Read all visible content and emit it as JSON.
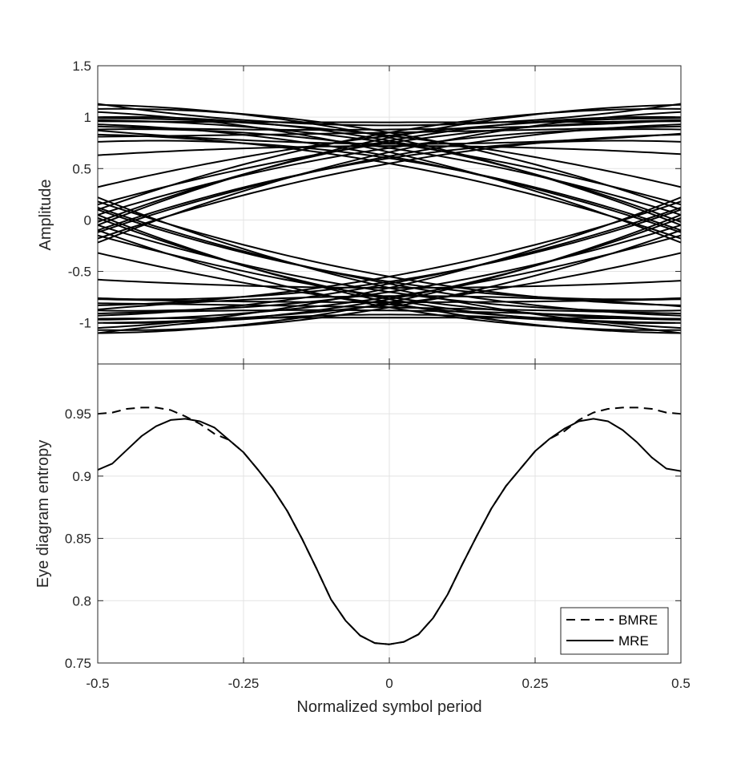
{
  "chart_data": [
    {
      "type": "line",
      "name": "eye-diagram",
      "ylabel": "Amplitude",
      "xlim": [
        -0.5,
        0.5
      ],
      "ylim": [
        -1.4,
        1.5
      ],
      "yticks": [
        -1,
        -0.5,
        0,
        0.5,
        1,
        1.5
      ],
      "yticklabels": [
        "-1",
        "-0.5",
        "0",
        "0.5",
        "1",
        "1.5"
      ],
      "grid": true,
      "line_color": "#000000",
      "traces": [
        {
          "y_left": 0.93,
          "y_right": -0.12,
          "y_center": 0.62
        },
        {
          "y_left": 1.12,
          "y_right": -0.05,
          "y_center": 0.8
        },
        {
          "y_left": 0.88,
          "y_right": 0.05,
          "y_center": 0.7
        },
        {
          "y_left": 1.05,
          "y_right": -0.22,
          "y_center": 0.66
        },
        {
          "y_left": 0.97,
          "y_right": 0.15,
          "y_center": 0.75
        },
        {
          "y_left": 0.83,
          "y_right": -0.18,
          "y_center": 0.55
        },
        {
          "y_left": 0.99,
          "y_right": 0.32,
          "y_center": 0.82
        },
        {
          "y_left": 1.0,
          "y_right": -0.02,
          "y_center": 0.77
        },
        {
          "y_left": 1.08,
          "y_right": 0.1,
          "y_center": 0.85
        },
        {
          "y_left": 0.76,
          "y_right": -0.1,
          "y_center": 0.6
        },
        {
          "y_left": -0.12,
          "y_right": 0.93,
          "y_center": 0.62
        },
        {
          "y_left": -0.05,
          "y_right": 1.12,
          "y_center": 0.8
        },
        {
          "y_left": 0.05,
          "y_right": 0.88,
          "y_center": 0.7
        },
        {
          "y_left": -0.22,
          "y_right": 1.05,
          "y_center": 0.66
        },
        {
          "y_left": 0.15,
          "y_right": 0.97,
          "y_center": 0.75
        },
        {
          "y_left": -0.18,
          "y_right": 0.83,
          "y_center": 0.55
        },
        {
          "y_left": 0.32,
          "y_right": 0.99,
          "y_center": 0.82
        },
        {
          "y_left": -0.02,
          "y_right": 1.0,
          "y_center": 0.77
        },
        {
          "y_left": 0.1,
          "y_right": 1.08,
          "y_center": 0.85
        },
        {
          "y_left": -0.1,
          "y_right": 0.76,
          "y_center": 0.6
        },
        {
          "y_left": -0.93,
          "y_right": 0.12,
          "y_center": -0.62
        },
        {
          "y_left": -1.1,
          "y_right": 0.05,
          "y_center": -0.8
        },
        {
          "y_left": -0.88,
          "y_right": -0.05,
          "y_center": -0.7
        },
        {
          "y_left": -1.05,
          "y_right": 0.22,
          "y_center": -0.66
        },
        {
          "y_left": -0.97,
          "y_right": -0.15,
          "y_center": -0.75
        },
        {
          "y_left": -0.83,
          "y_right": 0.18,
          "y_center": -0.55
        },
        {
          "y_left": -1.0,
          "y_right": -0.32,
          "y_center": -0.82
        },
        {
          "y_left": -1.0,
          "y_right": 0.02,
          "y_center": -0.77
        },
        {
          "y_left": -1.07,
          "y_right": -0.1,
          "y_center": -0.85
        },
        {
          "y_left": -0.76,
          "y_right": 0.1,
          "y_center": -0.6
        },
        {
          "y_left": 0.12,
          "y_right": -0.93,
          "y_center": -0.62
        },
        {
          "y_left": 0.05,
          "y_right": -1.1,
          "y_center": -0.8
        },
        {
          "y_left": -0.05,
          "y_right": -0.88,
          "y_center": -0.7
        },
        {
          "y_left": 0.22,
          "y_right": -1.05,
          "y_center": -0.66
        },
        {
          "y_left": -0.15,
          "y_right": -0.97,
          "y_center": -0.75
        },
        {
          "y_left": 0.18,
          "y_right": -0.83,
          "y_center": -0.55
        },
        {
          "y_left": -0.32,
          "y_right": -1.0,
          "y_center": -0.82
        },
        {
          "y_left": 0.02,
          "y_right": -1.0,
          "y_center": -0.77
        },
        {
          "y_left": -0.1,
          "y_right": -1.07,
          "y_center": -0.85
        },
        {
          "y_left": 0.1,
          "y_right": -0.76,
          "y_center": -0.6
        },
        {
          "y_left": 0.87,
          "y_right": 0.84,
          "y_center": 0.74
        },
        {
          "y_left": 0.81,
          "y_right": 0.91,
          "y_center": 0.85
        },
        {
          "y_left": 0.63,
          "y_right": 0.64,
          "y_center": 0.72
        },
        {
          "y_left": 0.91,
          "y_right": 0.97,
          "y_center": 0.88
        },
        {
          "y_left": 1.13,
          "y_right": 1.13,
          "y_center": 0.92
        },
        {
          "y_left": 0.96,
          "y_right": 0.96,
          "y_center": 0.95
        },
        {
          "y_left": -0.87,
          "y_right": -0.84,
          "y_center": -0.74
        },
        {
          "y_left": -0.81,
          "y_right": -0.91,
          "y_center": -0.85
        },
        {
          "y_left": -0.58,
          "y_right": -0.59,
          "y_center": -0.66
        },
        {
          "y_left": -0.91,
          "y_right": -0.97,
          "y_center": -0.88
        },
        {
          "y_left": -1.1,
          "y_right": -1.1,
          "y_center": -0.92
        },
        {
          "y_left": -0.96,
          "y_right": -0.96,
          "y_center": -0.95
        },
        {
          "y_left": -0.77,
          "y_right": -0.77,
          "y_center": -0.8
        }
      ]
    },
    {
      "type": "line",
      "name": "eye-entropy",
      "xlabel": "Normalized symbol period",
      "ylabel": "Eye diagram entropy",
      "xlim": [
        -0.5,
        0.5
      ],
      "ylim": [
        0.75,
        0.99
      ],
      "xticks": [
        -0.5,
        -0.25,
        0,
        0.25,
        0.5
      ],
      "xticklabels": [
        "-0.5",
        "-0.25",
        "0",
        "0.25",
        "0.5"
      ],
      "yticks": [
        0.75,
        0.8,
        0.85,
        0.9,
        0.95
      ],
      "yticklabels": [
        "0.75",
        "0.8",
        "0.85",
        "0.9",
        "0.95"
      ],
      "grid": true,
      "legend": {
        "location": "bottom-right"
      },
      "series": [
        {
          "name": "BMRE",
          "style": "dashed",
          "color": "#000000",
          "x": [
            -0.5,
            -0.475,
            -0.45,
            -0.425,
            -0.4,
            -0.375,
            -0.35,
            -0.325,
            -0.3,
            -0.275,
            -0.25,
            -0.225,
            -0.2,
            -0.175,
            -0.15,
            -0.125,
            -0.1,
            -0.075,
            -0.05,
            -0.025,
            0,
            0.025,
            0.05,
            0.075,
            0.1,
            0.125,
            0.15,
            0.175,
            0.2,
            0.225,
            0.25,
            0.275,
            0.3,
            0.325,
            0.35,
            0.375,
            0.4,
            0.425,
            0.45,
            0.475,
            0.5
          ],
          "y": [
            0.95,
            0.951,
            0.954,
            0.955,
            0.955,
            0.953,
            0.948,
            0.942,
            0.934,
            0.929,
            0.919,
            0.905,
            0.89,
            0.872,
            0.85,
            0.826,
            0.801,
            0.784,
            0.772,
            0.766,
            0.765,
            0.767,
            0.773,
            0.786,
            0.805,
            0.829,
            0.852,
            0.874,
            0.892,
            0.906,
            0.92,
            0.93,
            0.936,
            0.945,
            0.951,
            0.954,
            0.955,
            0.955,
            0.954,
            0.951,
            0.95
          ]
        },
        {
          "name": "MRE",
          "style": "solid",
          "color": "#000000",
          "x": [
            -0.5,
            -0.475,
            -0.45,
            -0.425,
            -0.4,
            -0.375,
            -0.35,
            -0.325,
            -0.3,
            -0.275,
            -0.25,
            -0.225,
            -0.2,
            -0.175,
            -0.15,
            -0.125,
            -0.1,
            -0.075,
            -0.05,
            -0.025,
            0,
            0.025,
            0.05,
            0.075,
            0.1,
            0.125,
            0.15,
            0.175,
            0.2,
            0.225,
            0.25,
            0.275,
            0.3,
            0.325,
            0.35,
            0.375,
            0.4,
            0.425,
            0.45,
            0.475,
            0.5
          ],
          "y": [
            0.905,
            0.91,
            0.921,
            0.932,
            0.94,
            0.945,
            0.946,
            0.944,
            0.939,
            0.929,
            0.919,
            0.905,
            0.89,
            0.872,
            0.85,
            0.826,
            0.801,
            0.784,
            0.772,
            0.766,
            0.765,
            0.767,
            0.773,
            0.786,
            0.805,
            0.829,
            0.852,
            0.874,
            0.892,
            0.906,
            0.92,
            0.93,
            0.938,
            0.944,
            0.946,
            0.944,
            0.937,
            0.927,
            0.915,
            0.906,
            0.904
          ]
        }
      ]
    }
  ]
}
